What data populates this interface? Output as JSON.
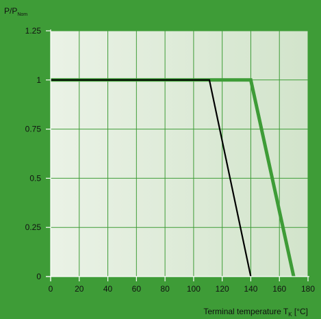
{
  "chart_data": {
    "type": "line",
    "ylabel": "P/P",
    "ylabel_sub": "Nom",
    "xlabel": "Terminal temperature T",
    "xlabel_sub": "K",
    "xlabel_unit": " [°C]",
    "xlim": [
      0,
      180
    ],
    "ylim": [
      0,
      1.25
    ],
    "x_ticks": [
      0,
      20,
      40,
      60,
      80,
      100,
      120,
      140,
      160,
      180
    ],
    "y_ticks": [
      0,
      0.25,
      0.5,
      0.75,
      1,
      1.25
    ],
    "y_tick_labels": [
      "0",
      "0.25",
      "0.5",
      "0.75",
      "1",
      "1.25"
    ],
    "grid": true,
    "series": [
      {
        "color": "#3e9c37",
        "points": [
          [
            0,
            1
          ],
          [
            140,
            1
          ],
          [
            170,
            0
          ]
        ]
      },
      {
        "color": "#000000",
        "points": [
          [
            0,
            1
          ],
          [
            111,
            1
          ],
          [
            140,
            0
          ]
        ]
      }
    ],
    "colors": {
      "background": "#3e9c37",
      "plot_left": "#eaf2e6",
      "plot_right": "#d2e4cb",
      "grid": "#3e9c37",
      "axis": "#ffffff"
    }
  }
}
